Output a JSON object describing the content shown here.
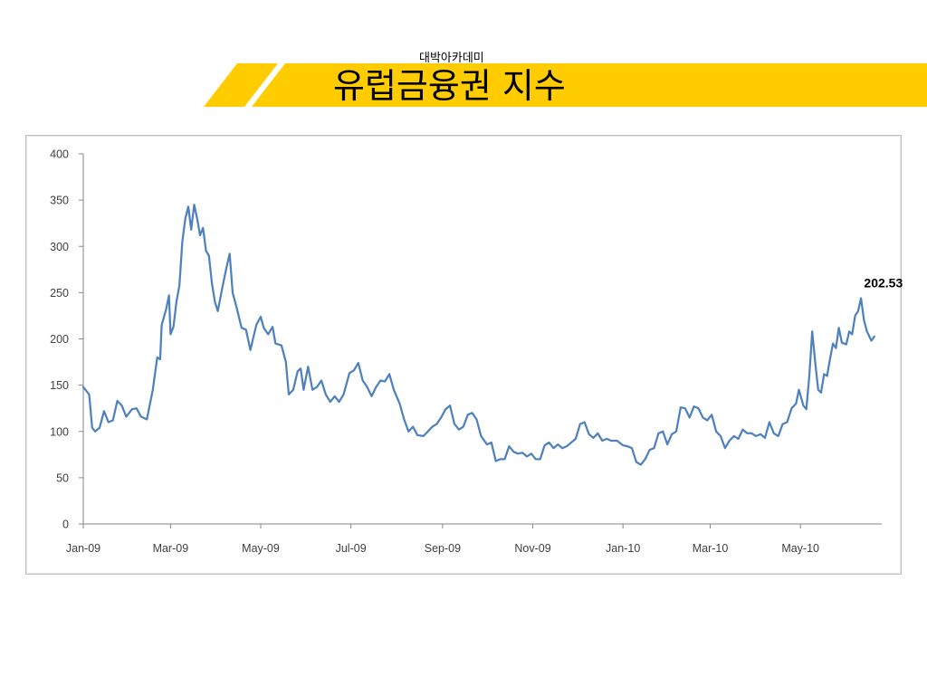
{
  "header": {
    "brand": "대박아카데미",
    "title": "유럽금융권 지수"
  },
  "colors": {
    "banner": "#FFCC00",
    "line": "#4F81BD",
    "axis": "#868686"
  },
  "chart_data": {
    "type": "line",
    "title": "",
    "xlabel": "",
    "ylabel": "",
    "ylim": [
      0,
      400
    ],
    "yticks": [
      0,
      50,
      100,
      150,
      200,
      250,
      300,
      350,
      400
    ],
    "xlim": [
      "2009-01-01",
      "2010-06-25"
    ],
    "xticks": [
      {
        "date": "2009-01-01",
        "label": "Jan-09"
      },
      {
        "date": "2009-03-01",
        "label": "Mar-09"
      },
      {
        "date": "2009-05-01",
        "label": "May-09"
      },
      {
        "date": "2009-07-01",
        "label": "Jul-09"
      },
      {
        "date": "2009-09-01",
        "label": "Sep-09"
      },
      {
        "date": "2009-11-01",
        "label": "Nov-09"
      },
      {
        "date": "2010-01-01",
        "label": "Jan-10"
      },
      {
        "date": "2010-03-01",
        "label": "Mar-10"
      },
      {
        "date": "2010-05-01",
        "label": "May-10"
      }
    ],
    "grid": false,
    "legend": "none",
    "series": [
      {
        "points": [
          [
            "2009-01-01",
            148
          ],
          [
            "2009-01-05",
            140
          ],
          [
            "2009-01-07",
            104
          ],
          [
            "2009-01-09",
            100
          ],
          [
            "2009-01-12",
            104
          ],
          [
            "2009-01-15",
            122
          ],
          [
            "2009-01-18",
            110
          ],
          [
            "2009-01-21",
            112
          ],
          [
            "2009-01-24",
            133
          ],
          [
            "2009-01-27",
            128
          ],
          [
            "2009-01-30",
            116
          ],
          [
            "2009-02-03",
            124
          ],
          [
            "2009-02-06",
            125
          ],
          [
            "2009-02-09",
            116
          ],
          [
            "2009-02-13",
            113
          ],
          [
            "2009-02-17",
            145
          ],
          [
            "2009-02-20",
            180
          ],
          [
            "2009-02-22",
            178
          ],
          [
            "2009-02-23",
            215
          ],
          [
            "2009-02-26",
            232
          ],
          [
            "2009-02-28",
            247
          ],
          [
            "2009-03-01",
            205
          ],
          [
            "2009-03-03",
            213
          ],
          [
            "2009-03-05",
            240
          ],
          [
            "2009-03-07",
            258
          ],
          [
            "2009-03-09",
            305
          ],
          [
            "2009-03-11",
            330
          ],
          [
            "2009-03-13",
            343
          ],
          [
            "2009-03-15",
            318
          ],
          [
            "2009-03-17",
            345
          ],
          [
            "2009-03-19",
            330
          ],
          [
            "2009-03-21",
            312
          ],
          [
            "2009-03-23",
            320
          ],
          [
            "2009-03-25",
            295
          ],
          [
            "2009-03-27",
            290
          ],
          [
            "2009-03-29",
            260
          ],
          [
            "2009-03-31",
            240
          ],
          [
            "2009-04-02",
            230
          ],
          [
            "2009-04-05",
            255
          ],
          [
            "2009-04-08",
            278
          ],
          [
            "2009-04-10",
            292
          ],
          [
            "2009-04-12",
            250
          ],
          [
            "2009-04-15",
            232
          ],
          [
            "2009-04-18",
            212
          ],
          [
            "2009-04-21",
            210
          ],
          [
            "2009-04-24",
            188
          ],
          [
            "2009-04-28",
            215
          ],
          [
            "2009-05-01",
            224
          ],
          [
            "2009-05-03",
            212
          ],
          [
            "2009-05-06",
            205
          ],
          [
            "2009-05-09",
            213
          ],
          [
            "2009-05-11",
            195
          ],
          [
            "2009-05-15",
            193
          ],
          [
            "2009-05-18",
            175
          ],
          [
            "2009-05-20",
            140
          ],
          [
            "2009-05-23",
            145
          ],
          [
            "2009-05-26",
            165
          ],
          [
            "2009-05-28",
            168
          ],
          [
            "2009-05-30",
            145
          ],
          [
            "2009-06-02",
            170
          ],
          [
            "2009-06-05",
            145
          ],
          [
            "2009-06-08",
            148
          ],
          [
            "2009-06-11",
            155
          ],
          [
            "2009-06-14",
            140
          ],
          [
            "2009-06-17",
            132
          ],
          [
            "2009-06-20",
            138
          ],
          [
            "2009-06-23",
            132
          ],
          [
            "2009-06-26",
            140
          ],
          [
            "2009-06-30",
            163
          ],
          [
            "2009-07-03",
            166
          ],
          [
            "2009-07-06",
            174
          ],
          [
            "2009-07-09",
            155
          ],
          [
            "2009-07-12",
            148
          ],
          [
            "2009-07-15",
            138
          ],
          [
            "2009-07-18",
            148
          ],
          [
            "2009-07-21",
            155
          ],
          [
            "2009-07-24",
            154
          ],
          [
            "2009-07-27",
            162
          ],
          [
            "2009-07-30",
            145
          ],
          [
            "2009-08-03",
            130
          ],
          [
            "2009-08-06",
            113
          ],
          [
            "2009-08-09",
            100
          ],
          [
            "2009-08-12",
            105
          ],
          [
            "2009-08-15",
            96
          ],
          [
            "2009-08-19",
            95
          ],
          [
            "2009-08-22",
            100
          ],
          [
            "2009-08-25",
            105
          ],
          [
            "2009-08-28",
            108
          ],
          [
            "2009-08-31",
            115
          ],
          [
            "2009-09-03",
            124
          ],
          [
            "2009-09-06",
            128
          ],
          [
            "2009-09-09",
            108
          ],
          [
            "2009-09-12",
            102
          ],
          [
            "2009-09-15",
            105
          ],
          [
            "2009-09-18",
            118
          ],
          [
            "2009-09-21",
            120
          ],
          [
            "2009-09-24",
            113
          ],
          [
            "2009-09-27",
            95
          ],
          [
            "2009-10-01",
            86
          ],
          [
            "2009-10-04",
            88
          ],
          [
            "2009-10-07",
            68
          ],
          [
            "2009-10-10",
            70
          ],
          [
            "2009-10-13",
            70
          ],
          [
            "2009-10-16",
            84
          ],
          [
            "2009-10-19",
            78
          ],
          [
            "2009-10-22",
            76
          ],
          [
            "2009-10-25",
            77
          ],
          [
            "2009-10-28",
            73
          ],
          [
            "2009-10-31",
            76
          ],
          [
            "2009-11-03",
            70
          ],
          [
            "2009-11-06",
            70
          ],
          [
            "2009-11-09",
            85
          ],
          [
            "2009-11-12",
            88
          ],
          [
            "2009-11-15",
            82
          ],
          [
            "2009-11-18",
            86
          ],
          [
            "2009-11-21",
            82
          ],
          [
            "2009-11-24",
            84
          ],
          [
            "2009-11-27",
            88
          ],
          [
            "2009-11-30",
            92
          ],
          [
            "2009-12-03",
            108
          ],
          [
            "2009-12-06",
            110
          ],
          [
            "2009-12-09",
            97
          ],
          [
            "2009-12-12",
            93
          ],
          [
            "2009-12-15",
            98
          ],
          [
            "2009-12-18",
            90
          ],
          [
            "2009-12-21",
            92
          ],
          [
            "2009-12-24",
            90
          ],
          [
            "2009-12-28",
            90
          ],
          [
            "2010-01-01",
            85
          ],
          [
            "2010-01-04",
            84
          ],
          [
            "2010-01-07",
            82
          ],
          [
            "2010-01-10",
            67
          ],
          [
            "2010-01-13",
            64
          ],
          [
            "2010-01-16",
            70
          ],
          [
            "2010-01-19",
            80
          ],
          [
            "2010-01-22",
            82
          ],
          [
            "2010-01-25",
            98
          ],
          [
            "2010-01-28",
            100
          ],
          [
            "2010-01-31",
            86
          ],
          [
            "2010-02-03",
            97
          ],
          [
            "2010-02-06",
            100
          ],
          [
            "2010-02-09",
            126
          ],
          [
            "2010-02-12",
            125
          ],
          [
            "2010-02-15",
            115
          ],
          [
            "2010-02-18",
            127
          ],
          [
            "2010-02-21",
            125
          ],
          [
            "2010-02-24",
            115
          ],
          [
            "2010-02-27",
            112
          ],
          [
            "2010-03-02",
            118
          ],
          [
            "2010-03-05",
            100
          ],
          [
            "2010-03-08",
            95
          ],
          [
            "2010-03-11",
            82
          ],
          [
            "2010-03-14",
            90
          ],
          [
            "2010-03-17",
            95
          ],
          [
            "2010-03-20",
            92
          ],
          [
            "2010-03-23",
            102
          ],
          [
            "2010-03-26",
            98
          ],
          [
            "2010-03-29",
            98
          ],
          [
            "2010-04-01",
            95
          ],
          [
            "2010-04-04",
            97
          ],
          [
            "2010-04-07",
            93
          ],
          [
            "2010-04-10",
            110
          ],
          [
            "2010-04-13",
            98
          ],
          [
            "2010-04-16",
            95
          ],
          [
            "2010-04-19",
            108
          ],
          [
            "2010-04-22",
            110
          ],
          [
            "2010-04-25",
            125
          ],
          [
            "2010-04-28",
            130
          ],
          [
            "2010-04-30",
            145
          ],
          [
            "2010-05-03",
            128
          ],
          [
            "2010-05-05",
            124
          ],
          [
            "2010-05-07",
            160
          ],
          [
            "2010-05-09",
            208
          ],
          [
            "2010-05-11",
            175
          ],
          [
            "2010-05-13",
            145
          ],
          [
            "2010-05-15",
            142
          ],
          [
            "2010-05-17",
            162
          ],
          [
            "2010-05-19",
            160
          ],
          [
            "2010-05-21",
            178
          ],
          [
            "2010-05-23",
            195
          ],
          [
            "2010-05-25",
            190
          ],
          [
            "2010-05-27",
            212
          ],
          [
            "2010-05-29",
            196
          ],
          [
            "2010-06-01",
            194
          ],
          [
            "2010-06-03",
            208
          ],
          [
            "2010-06-05",
            205
          ],
          [
            "2010-06-07",
            225
          ],
          [
            "2010-06-09",
            230
          ],
          [
            "2010-06-11",
            244
          ],
          [
            "2010-06-13",
            220
          ],
          [
            "2010-06-15",
            208
          ],
          [
            "2010-06-18",
            198
          ],
          [
            "2010-06-20",
            202.53
          ]
        ]
      }
    ],
    "annotation": {
      "date": "2010-06-20",
      "value": 202.53,
      "label": "202.53"
    }
  }
}
